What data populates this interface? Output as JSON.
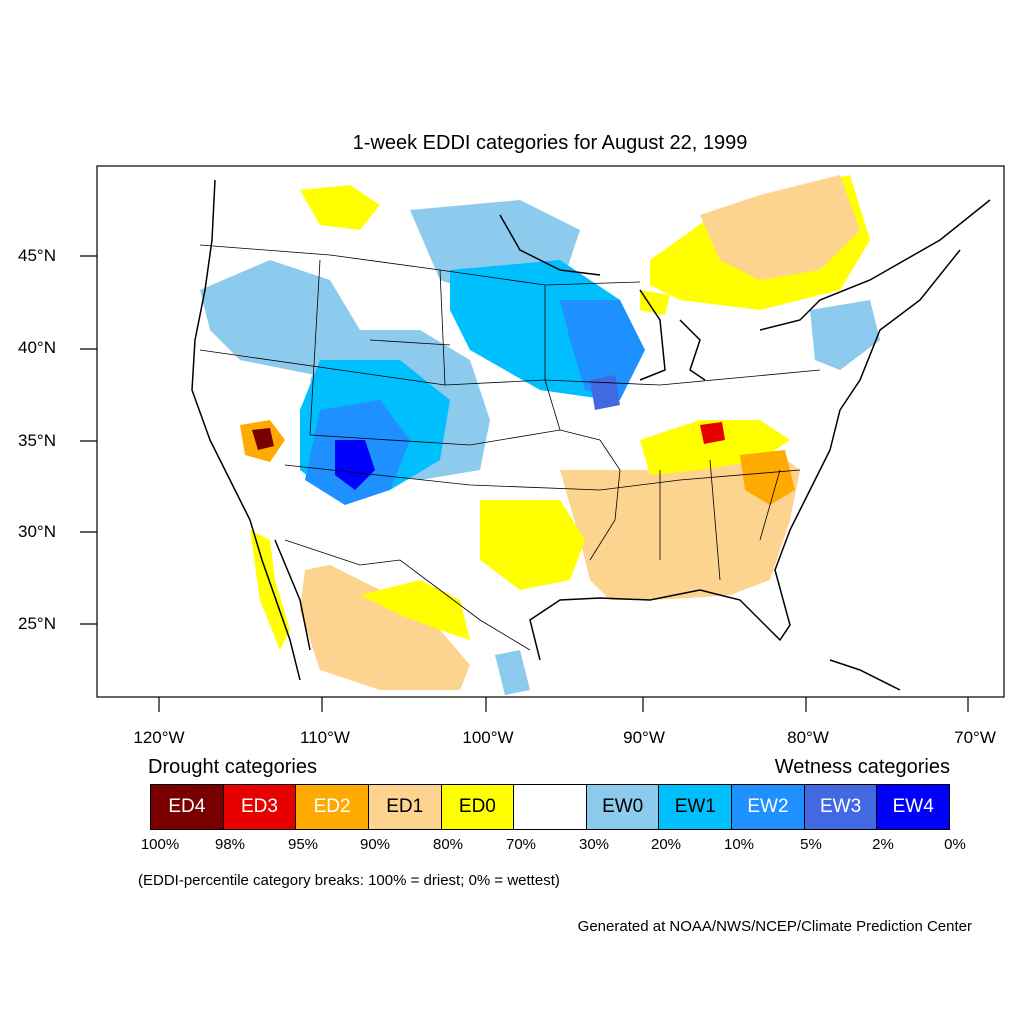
{
  "title": "1-week EDDI categories for August 22, 1999",
  "lat_labels": [
    "45°N",
    "40°N",
    "35°N",
    "30°N",
    "25°N"
  ],
  "lon_labels": [
    "120°W",
    "110°W",
    "100°W",
    "90°W",
    "80°W",
    "70°W"
  ],
  "legend": {
    "drought_caption": "Drought categories",
    "wetness_caption": "Wetness categories",
    "categories": [
      {
        "label": "ED4",
        "color": "#7a0000",
        "text_color": "#ffffff"
      },
      {
        "label": "ED3",
        "color": "#e60000",
        "text_color": "#ffffff"
      },
      {
        "label": "ED2",
        "color": "#ffaa00",
        "text_color": "#ffffff"
      },
      {
        "label": "ED1",
        "color": "#fcd38f",
        "text_color": "#000000"
      },
      {
        "label": "ED0",
        "color": "#ffff00",
        "text_color": "#000000"
      },
      {
        "label": "",
        "color": "#ffffff",
        "text_color": "#000000"
      },
      {
        "label": "EW0",
        "color": "#8dcbee",
        "text_color": "#000000"
      },
      {
        "label": "EW1",
        "color": "#00bfff",
        "text_color": "#000000"
      },
      {
        "label": "EW2",
        "color": "#1e90ff",
        "text_color": "#ffffff"
      },
      {
        "label": "EW3",
        "color": "#4169e1",
        "text_color": "#ffffff"
      },
      {
        "label": "EW4",
        "color": "#0000ff",
        "text_color": "#ffffff"
      }
    ],
    "breaks": [
      "100%",
      "98%",
      "95%",
      "90%",
      "80%",
      "70%",
      "30%",
      "20%",
      "10%",
      "5%",
      "2%",
      "0%"
    ],
    "note": "(EDDI-percentile category breaks: 100% = driest; 0% = wettest)"
  },
  "credit": "Generated at NOAA/NWS/NCEP/Climate Prediction Center"
}
